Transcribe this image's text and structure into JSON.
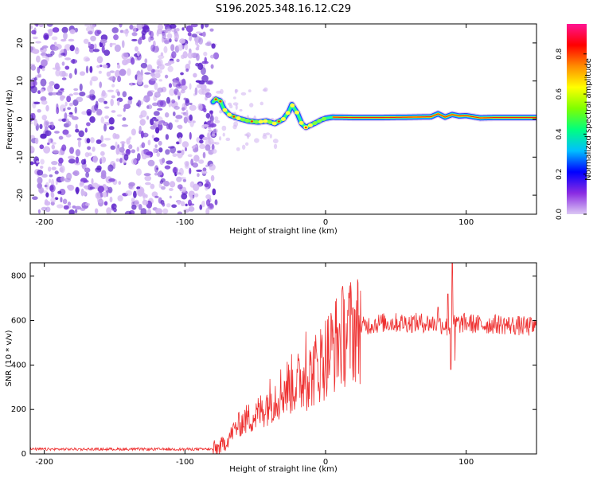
{
  "title": "S196.2025.348.16.12.C29",
  "colors": {
    "line": "#ee3030",
    "sparse_light": "#d4b8f2",
    "sparse_mid": "#b08ae6",
    "sparse_dark": "#7a3cd8",
    "sparse_deep": "#5a20c8"
  },
  "chart_data": [
    {
      "type": "heatmap",
      "name": "spectrogram",
      "title": "S196.2025.348.16.12.C29",
      "xlabel": "Height of straight line (km)",
      "ylabel": "Frequency (Hz)",
      "xlim": [
        -210,
        150
      ],
      "ylim": [
        -25,
        25
      ],
      "xticks": [
        -200,
        -100,
        0,
        100
      ],
      "yticks": [
        20,
        10,
        0,
        -10,
        -20
      ],
      "noise_region_x": [
        -210,
        -80
      ],
      "tone_x_range": [
        -80,
        150
      ],
      "tone_trace": {
        "x": [
          -80,
          -78,
          -75,
          -72,
          -68,
          -62,
          -55,
          -48,
          -42,
          -36,
          -30,
          -26,
          -24,
          -20,
          -17,
          -14,
          -10,
          -6,
          -3,
          0,
          5,
          20,
          40,
          60,
          75,
          80,
          85,
          90,
          95,
          100,
          110,
          120,
          130,
          140,
          150
        ],
        "y": [
          4.5,
          5.2,
          4.8,
          2.5,
          1.0,
          0.2,
          -0.5,
          -0.8,
          -0.5,
          -1.2,
          0.0,
          2.0,
          3.8,
          1.5,
          -1.2,
          -2.2,
          -1.5,
          -0.8,
          -0.2,
          0.2,
          0.5,
          0.4,
          0.4,
          0.5,
          0.6,
          1.4,
          0.5,
          1.2,
          0.8,
          0.9,
          0.3,
          0.4,
          0.4,
          0.4,
          0.4
        ]
      },
      "colorbar": {
        "label": "Normalized spectral amplitude",
        "range": [
          0.0,
          0.95
        ],
        "ticks": [
          0.0,
          0.2,
          0.4,
          0.6,
          0.8
        ],
        "tick_labels": [
          "0.0",
          "0.2",
          "0.4",
          "0.6",
          "0.8"
        ],
        "colormap_stops": [
          "#dcc8f4",
          "#8a2be2",
          "#0000ff",
          "#00bfff",
          "#00ff7f",
          "#7fff00",
          "#ffff00",
          "#ff8c00",
          "#ff0000",
          "#ff1493"
        ]
      }
    },
    {
      "type": "line",
      "name": "snr",
      "xlabel": "Height of straight line (km)",
      "ylabel": "SNR (10 * v/v)",
      "xlim": [
        -210,
        150
      ],
      "ylim": [
        0,
        860
      ],
      "xticks": [
        -200,
        -100,
        0,
        100
      ],
      "yticks": [
        0,
        200,
        400,
        600,
        800
      ],
      "envelope": {
        "x": [
          -210,
          -80,
          -75,
          -70,
          -65,
          -60,
          -55,
          -50,
          -45,
          -40,
          -35,
          -30,
          -25,
          -20,
          -15,
          -10,
          -5,
          0,
          5,
          10,
          15,
          20,
          25,
          30,
          40,
          50,
          60,
          70,
          80,
          85,
          88,
          90,
          92,
          95,
          100,
          110,
          120,
          130,
          140,
          150
        ],
        "y": [
          20,
          20,
          30,
          60,
          110,
          140,
          160,
          170,
          200,
          240,
          260,
          290,
          310,
          320,
          340,
          360,
          400,
          440,
          480,
          520,
          545,
          560,
          570,
          580,
          590,
          590,
          590,
          590,
          585,
          580,
          560,
          590,
          590,
          585,
          590,
          580,
          585,
          580,
          575,
          570
        ]
      },
      "spikes": [
        {
          "x": -14,
          "y": 550
        },
        {
          "x": 80,
          "y": 660
        },
        {
          "x": 87,
          "y": 720
        },
        {
          "x": 89,
          "y": 380
        },
        {
          "x": 90,
          "y": 860
        },
        {
          "x": 92,
          "y": 420
        }
      ],
      "peak_value": 860,
      "trough_value": 380
    }
  ]
}
